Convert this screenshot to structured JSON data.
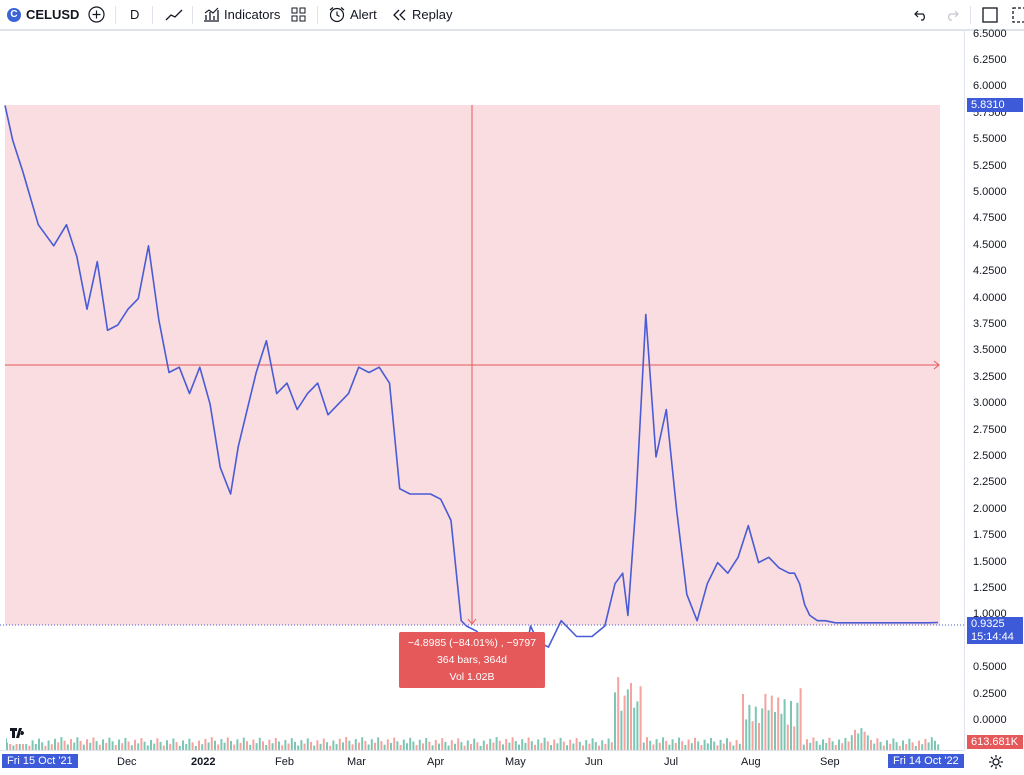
{
  "toolbar": {
    "symbol": "CELUSD",
    "symbol_logo": "C",
    "interval": "D",
    "indicators_label": "Indicators",
    "alert_label": "Alert",
    "replay_label": "Replay"
  },
  "icons": [
    "add-symbol-icon",
    "line-chart-icon",
    "indicators-icon",
    "layout-grid-icon",
    "alert-clock-icon",
    "replay-icon",
    "undo-icon",
    "redo-icon",
    "fullscreen-icon",
    "snapshot-icon",
    "settings-gear-icon",
    "tradingview-logo-icon"
  ],
  "colors": {
    "line": "#4a5bd6",
    "range_fill": "#f8d7da",
    "range_line": "#e5595b",
    "up_vol": "#7cc6b3",
    "down_vol": "#f4a4a0",
    "price_tag": "#3d5bd9",
    "tooltip_bg": "#e5595b"
  },
  "price_tags": {
    "top": "5.8310",
    "current": "0.9325",
    "countdown": "15:14:44",
    "volume": "613.681K"
  },
  "time_tags": {
    "start": "Fri 15 Oct '21",
    "end": "Fri 14 Oct '22"
  },
  "measure": {
    "line1": "−4.8985 (−84.01%) , −9797",
    "line2": "364 bars, 364d",
    "line3": "Vol 1.02B"
  },
  "chart_data": {
    "type": "line",
    "symbol": "CELUSD",
    "interval": "D",
    "x": [
      "2021-10-15",
      "2021-10-18",
      "2021-10-22",
      "2021-10-28",
      "2021-11-03",
      "2021-11-08",
      "2021-11-12",
      "2021-11-16",
      "2021-11-20",
      "2021-11-24",
      "2021-11-28",
      "2021-12-02",
      "2021-12-06",
      "2021-12-10",
      "2021-12-14",
      "2021-12-18",
      "2021-12-22",
      "2021-12-26",
      "2021-12-30",
      "2022-01-03",
      "2022-01-07",
      "2022-01-11",
      "2022-01-14",
      "2022-01-18",
      "2022-01-21",
      "2022-01-25",
      "2022-01-29",
      "2022-02-02",
      "2022-02-06",
      "2022-02-10",
      "2022-02-14",
      "2022-02-18",
      "2022-02-22",
      "2022-02-26",
      "2022-03-02",
      "2022-03-06",
      "2022-03-10",
      "2022-03-14",
      "2022-03-18",
      "2022-03-22",
      "2022-03-26",
      "2022-03-30",
      "2022-04-03",
      "2022-04-07",
      "2022-04-11",
      "2022-04-13",
      "2022-04-17",
      "2022-04-21",
      "2022-04-25",
      "2022-04-29",
      "2022-05-04",
      "2022-05-08",
      "2022-05-11",
      "2022-05-15",
      "2022-05-20",
      "2022-05-26",
      "2022-06-01",
      "2022-06-06",
      "2022-06-10",
      "2022-06-13",
      "2022-06-15",
      "2022-06-18",
      "2022-06-22",
      "2022-06-26",
      "2022-06-30",
      "2022-07-04",
      "2022-07-08",
      "2022-07-12",
      "2022-07-16",
      "2022-07-20",
      "2022-07-24",
      "2022-07-28",
      "2022-08-01",
      "2022-08-05",
      "2022-08-09",
      "2022-08-13",
      "2022-08-17",
      "2022-08-19",
      "2022-08-21",
      "2022-08-23",
      "2022-08-25",
      "2022-08-28",
      "2022-08-31",
      "2022-09-04",
      "2022-09-08",
      "2022-09-12",
      "2022-09-16",
      "2022-09-20",
      "2022-09-24",
      "2022-09-28",
      "2022-10-02",
      "2022-10-06",
      "2022-10-10",
      "2022-10-14"
    ],
    "close": [
      5.83,
      5.5,
      5.2,
      4.7,
      4.5,
      4.7,
      4.4,
      3.9,
      4.35,
      3.7,
      3.75,
      3.9,
      4.0,
      4.5,
      3.8,
      3.3,
      3.35,
      3.1,
      3.35,
      3.0,
      2.4,
      2.15,
      2.6,
      3.0,
      3.3,
      3.6,
      3.1,
      3.2,
      2.95,
      3.1,
      3.2,
      2.9,
      3.0,
      3.1,
      3.35,
      3.3,
      3.35,
      3.2,
      2.2,
      2.15,
      2.15,
      2.15,
      2.1,
      1.9,
      0.95,
      0.9,
      0.85,
      0.75,
      0.8,
      0.6,
      0.35,
      0.9,
      0.75,
      0.7,
      0.95,
      0.8,
      0.8,
      0.9,
      1.3,
      1.4,
      1.0,
      2.0,
      3.85,
      2.5,
      2.95,
      2.0,
      1.2,
      0.95,
      1.3,
      1.5,
      1.4,
      1.55,
      1.85,
      1.5,
      1.55,
      1.45,
      1.4,
      1.4,
      1.3,
      1.1,
      1.0,
      0.95,
      0.95,
      0.93,
      0.93,
      0.93,
      0.93,
      0.93,
      0.93,
      0.93,
      0.93,
      0.93,
      0.93,
      0.9325
    ],
    "price_axis": [
      "6.5000",
      "6.2500",
      "6.0000",
      "5.7500",
      "5.5000",
      "5.2500",
      "5.0000",
      "4.7500",
      "4.5000",
      "4.2500",
      "4.0000",
      "3.7500",
      "3.5000",
      "3.2500",
      "3.0000",
      "2.7500",
      "2.5000",
      "2.2500",
      "2.0000",
      "1.7500",
      "1.5000",
      "1.2500",
      "1.0000",
      "0.7500",
      "0.5000",
      "0.2500",
      "0.0000"
    ],
    "time_axis": [
      "Dec",
      "2022",
      "Feb",
      "Mar",
      "Apr",
      "May",
      "Jun",
      "Jul",
      "Aug",
      "Sep"
    ],
    "ylim": [
      0,
      6.5
    ],
    "grid": false,
    "measure_range": {
      "from": 5.831,
      "to": 0.9325
    }
  }
}
